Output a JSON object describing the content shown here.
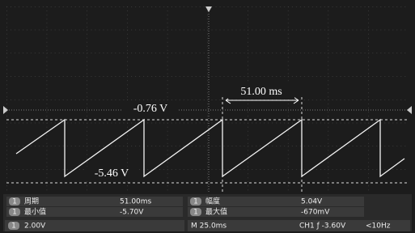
{
  "cursor": {
    "delta": "51.00 ms",
    "upper": "-0.76 V",
    "lower": "-5.46 V"
  },
  "measurements": [
    {
      "channel": "1",
      "label": "周期",
      "value": "51.00ms"
    },
    {
      "channel": "1",
      "label": "最小值",
      "value": "-5.70V"
    },
    {
      "channel": "1",
      "label": "幅度",
      "value": "5.04V"
    },
    {
      "channel": "1",
      "label": "最大值",
      "value": "-670mV"
    }
  ],
  "status": {
    "channel": "1",
    "scale": "2.00V",
    "timebase": "M 25.0ms",
    "trigger": "CH1 ƒ -3.60V",
    "frequency": "<10Hz"
  }
}
